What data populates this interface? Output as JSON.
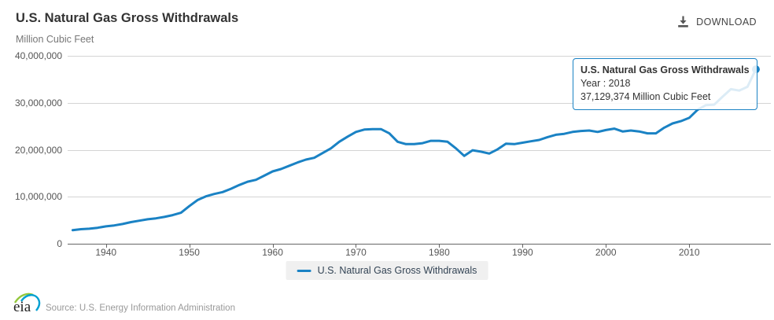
{
  "header": {
    "title": "U.S. Natural Gas Gross Withdrawals",
    "download_label": "DOWNLOAD",
    "units": "Million Cubic Feet"
  },
  "tooltip": {
    "series": "U.S. Natural Gas Gross Withdrawals",
    "year_line": "Year : 2018",
    "value_line": "37,129,374 Million Cubic Feet"
  },
  "legend": {
    "label": "U.S. Natural Gas Gross Withdrawals"
  },
  "footer": {
    "logo_text": "eia",
    "source": "Source: U.S. Energy Information Administration"
  },
  "colors": {
    "series": "#1a82c4",
    "grid": "#d4d4d4",
    "axis": "#666666",
    "legend_bg": "#f0f0f0"
  },
  "chart_data": {
    "type": "line",
    "title": "U.S. Natural Gas Gross Withdrawals",
    "ylabel": "Million Cubic Feet",
    "series_name": "U.S. Natural Gas Gross Withdrawals",
    "legend_position": "bottom",
    "grid": "horizontal",
    "ylim": [
      0,
      40000000
    ],
    "y_ticks": [
      0,
      10000000,
      20000000,
      30000000,
      40000000
    ],
    "y_tick_labels": [
      "0",
      "10,000,000",
      "20,000,000",
      "30,000,000",
      "40,000,000"
    ],
    "x_ticks": [
      1940,
      1950,
      1960,
      1970,
      1980,
      1990,
      2000,
      2010
    ],
    "highlight_point": {
      "year": 2018,
      "value": 37129374
    },
    "years": [
      1936,
      1937,
      1938,
      1939,
      1940,
      1941,
      1942,
      1943,
      1944,
      1945,
      1946,
      1947,
      1948,
      1949,
      1950,
      1951,
      1952,
      1953,
      1954,
      1955,
      1956,
      1957,
      1958,
      1959,
      1960,
      1961,
      1962,
      1963,
      1964,
      1965,
      1966,
      1967,
      1968,
      1969,
      1970,
      1971,
      1972,
      1973,
      1974,
      1975,
      1976,
      1977,
      1978,
      1979,
      1980,
      1981,
      1982,
      1983,
      1984,
      1985,
      1986,
      1987,
      1988,
      1989,
      1990,
      1991,
      1992,
      1993,
      1994,
      1995,
      1996,
      1997,
      1998,
      1999,
      2000,
      2001,
      2002,
      2003,
      2004,
      2005,
      2006,
      2007,
      2008,
      2009,
      2010,
      2011,
      2012,
      2013,
      2014,
      2015,
      2016,
      2017,
      2018
    ],
    "values": [
      2900000,
      3100000,
      3200000,
      3400000,
      3700000,
      3900000,
      4200000,
      4600000,
      4900000,
      5200000,
      5400000,
      5700000,
      6100000,
      6600000,
      8000000,
      9300000,
      10100000,
      10600000,
      11000000,
      11700000,
      12500000,
      13200000,
      13600000,
      14500000,
      15400000,
      15900000,
      16600000,
      17300000,
      17900000,
      18300000,
      19300000,
      20300000,
      21700000,
      22800000,
      23800000,
      24300000,
      24400000,
      24400000,
      23500000,
      21700000,
      21200000,
      21200000,
      21400000,
      21900000,
      21900000,
      21700000,
      20300000,
      18700000,
      19900000,
      19600000,
      19200000,
      20100000,
      21300000,
      21200000,
      21500000,
      21800000,
      22100000,
      22700000,
      23200000,
      23400000,
      23800000,
      24000000,
      24100000,
      23800000,
      24200000,
      24500000,
      23900000,
      24100000,
      23900000,
      23500000,
      23500000,
      24700000,
      25600000,
      26100000,
      26800000,
      28500000,
      29500000,
      29600000,
      31300000,
      32900000,
      32600000,
      33400000,
      37129374
    ]
  }
}
